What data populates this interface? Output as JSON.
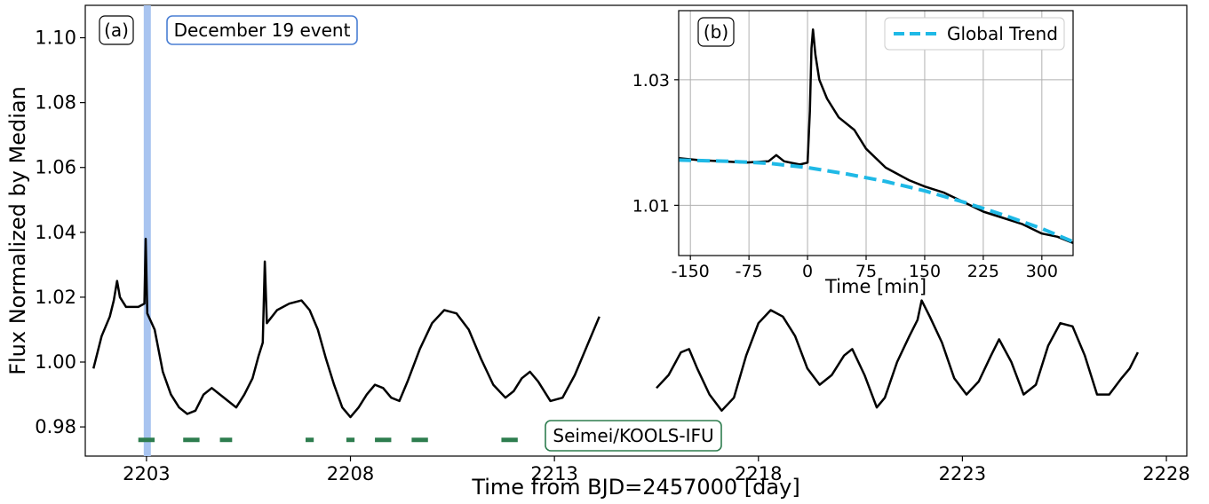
{
  "chart_data": [
    {
      "type": "line",
      "panel_label": "(a)",
      "xlabel": "Time from BJD=2457000 [day]",
      "ylabel": "Flux Normalized by Median",
      "xlim": [
        2201.5,
        2228.5
      ],
      "ylim": [
        0.971,
        1.11
      ],
      "x_ticks": [
        2203,
        2208,
        2213,
        2218,
        2223,
        2228
      ],
      "y_ticks": [
        0.98,
        1.0,
        1.02,
        1.04,
        1.06,
        1.08,
        1.1
      ],
      "y_tick_labels": [
        "0.98",
        "1.00",
        "1.02",
        "1.04",
        "1.06",
        "1.08",
        "1.10"
      ],
      "grid": false,
      "color": "#000000",
      "event": {
        "label": "December 19 event",
        "x": 2203.02,
        "color": "#a8c4f0"
      },
      "observations": {
        "label": "Seimei/KOOLS-IFU",
        "color": "#2e7d4f",
        "y": 0.976,
        "intervals": [
          [
            2202.8,
            2203.2
          ],
          [
            2203.9,
            2204.3
          ],
          [
            2204.8,
            2205.1
          ],
          [
            2206.9,
            2207.1
          ],
          [
            2207.9,
            2208.1
          ],
          [
            2208.6,
            2209.0
          ],
          [
            2209.5,
            2209.9
          ],
          [
            2211.7,
            2212.1
          ]
        ]
      },
      "segments": [
        {
          "name": "sector-part-1",
          "points": [
            [
              2201.7,
              0.998
            ],
            [
              2201.9,
              1.008
            ],
            [
              2202.1,
              1.014
            ],
            [
              2202.2,
              1.019
            ],
            [
              2202.28,
              1.025
            ],
            [
              2202.35,
              1.02
            ],
            [
              2202.5,
              1.017
            ],
            [
              2202.8,
              1.017
            ],
            [
              2202.95,
              1.018
            ],
            [
              2202.98,
              1.038
            ],
            [
              2203.02,
              1.015
            ],
            [
              2203.2,
              1.01
            ],
            [
              2203.4,
              0.997
            ],
            [
              2203.6,
              0.99
            ],
            [
              2203.8,
              0.986
            ],
            [
              2204.0,
              0.984
            ],
            [
              2204.2,
              0.985
            ],
            [
              2204.4,
              0.99
            ],
            [
              2204.6,
              0.992
            ],
            [
              2204.8,
              0.99
            ],
            [
              2205.0,
              0.988
            ],
            [
              2205.2,
              0.986
            ],
            [
              2205.4,
              0.99
            ],
            [
              2205.6,
              0.995
            ],
            [
              2205.75,
              1.002
            ],
            [
              2205.85,
              1.006
            ],
            [
              2205.9,
              1.031
            ],
            [
              2205.95,
              1.012
            ],
            [
              2206.2,
              1.016
            ],
            [
              2206.5,
              1.018
            ],
            [
              2206.8,
              1.019
            ],
            [
              2207.0,
              1.016
            ],
            [
              2207.2,
              1.01
            ],
            [
              2207.4,
              1.001
            ],
            [
              2207.6,
              0.993
            ],
            [
              2207.8,
              0.986
            ],
            [
              2208.0,
              0.983
            ],
            [
              2208.2,
              0.986
            ],
            [
              2208.4,
              0.99
            ],
            [
              2208.6,
              0.993
            ],
            [
              2208.8,
              0.992
            ],
            [
              2209.0,
              0.989
            ],
            [
              2209.2,
              0.988
            ],
            [
              2209.4,
              0.994
            ],
            [
              2209.7,
              1.004
            ],
            [
              2210.0,
              1.012
            ],
            [
              2210.3,
              1.016
            ],
            [
              2210.6,
              1.015
            ],
            [
              2210.9,
              1.01
            ],
            [
              2211.2,
              1.001
            ],
            [
              2211.5,
              0.993
            ],
            [
              2211.8,
              0.989
            ],
            [
              2212.0,
              0.991
            ],
            [
              2212.2,
              0.995
            ],
            [
              2212.4,
              0.997
            ],
            [
              2212.6,
              0.994
            ],
            [
              2212.9,
              0.988
            ],
            [
              2213.2,
              0.989
            ],
            [
              2213.5,
              0.996
            ],
            [
              2213.8,
              1.005
            ],
            [
              2214.1,
              1.014
            ]
          ]
        },
        {
          "name": "sector-part-2",
          "points": [
            [
              2215.5,
              0.992
            ],
            [
              2215.8,
              0.996
            ],
            [
              2216.1,
              1.003
            ],
            [
              2216.3,
              1.004
            ],
            [
              2216.5,
              0.998
            ],
            [
              2216.8,
              0.99
            ],
            [
              2217.1,
              0.985
            ],
            [
              2217.4,
              0.989
            ],
            [
              2217.7,
              1.002
            ],
            [
              2218.0,
              1.012
            ],
            [
              2218.3,
              1.016
            ],
            [
              2218.6,
              1.014
            ],
            [
              2218.9,
              1.008
            ],
            [
              2219.2,
              0.998
            ],
            [
              2219.5,
              0.993
            ],
            [
              2219.8,
              0.996
            ],
            [
              2220.1,
              1.002
            ],
            [
              2220.3,
              1.004
            ],
            [
              2220.6,
              0.996
            ],
            [
              2220.9,
              0.986
            ],
            [
              2221.1,
              0.989
            ],
            [
              2221.4,
              1.0
            ],
            [
              2221.7,
              1.008
            ],
            [
              2221.9,
              1.013
            ],
            [
              2222.0,
              1.019
            ],
            [
              2222.2,
              1.014
            ],
            [
              2222.5,
              1.006
            ],
            [
              2222.8,
              0.995
            ],
            [
              2223.1,
              0.99
            ],
            [
              2223.4,
              0.994
            ],
            [
              2223.7,
              1.002
            ],
            [
              2223.9,
              1.007
            ],
            [
              2224.2,
              1.0
            ],
            [
              2224.5,
              0.99
            ],
            [
              2224.8,
              0.993
            ],
            [
              2225.1,
              1.005
            ],
            [
              2225.4,
              1.012
            ],
            [
              2225.7,
              1.011
            ],
            [
              2226.0,
              1.002
            ],
            [
              2226.3,
              0.99
            ],
            [
              2226.6,
              0.99
            ],
            [
              2226.9,
              0.995
            ],
            [
              2227.1,
              0.998
            ],
            [
              2227.3,
              1.003
            ]
          ]
        }
      ]
    },
    {
      "type": "line",
      "panel_label": "(b)",
      "xlabel": "Time [min]",
      "xlim": [
        -165,
        340
      ],
      "ylim": [
        1.002,
        1.041
      ],
      "x_ticks": [
        -150,
        -75,
        0,
        75,
        150,
        225,
        300
      ],
      "y_ticks": [
        1.01,
        1.03
      ],
      "y_tick_labels": [
        "1.01",
        "1.03"
      ],
      "grid": true,
      "legend": "top-right",
      "series": [
        {
          "name": "",
          "color": "#000000",
          "points": [
            [
              -165,
              1.0175
            ],
            [
              -140,
              1.0172
            ],
            [
              -110,
              1.017
            ],
            [
              -80,
              1.0168
            ],
            [
              -50,
              1.017
            ],
            [
              -40,
              1.018
            ],
            [
              -30,
              1.017
            ],
            [
              -10,
              1.0165
            ],
            [
              0,
              1.0168
            ],
            [
              3,
              1.025
            ],
            [
              5,
              1.035
            ],
            [
              7,
              1.038
            ],
            [
              10,
              1.034
            ],
            [
              15,
              1.03
            ],
            [
              25,
              1.027
            ],
            [
              40,
              1.024
            ],
            [
              60,
              1.022
            ],
            [
              75,
              1.019
            ],
            [
              100,
              1.016
            ],
            [
              130,
              1.014
            ],
            [
              150,
              1.013
            ],
            [
              175,
              1.012
            ],
            [
              200,
              1.0105
            ],
            [
              225,
              1.009
            ],
            [
              250,
              1.008
            ],
            [
              275,
              1.007
            ],
            [
              300,
              1.0055
            ],
            [
              320,
              1.005
            ],
            [
              340,
              1.004
            ]
          ]
        },
        {
          "name": "Global Trend",
          "color": "#1fb9e6",
          "dashed": true,
          "points": [
            [
              -165,
              1.0172
            ],
            [
              -100,
              1.017
            ],
            [
              -50,
              1.0167
            ],
            [
              0,
              1.016
            ],
            [
              50,
              1.015
            ],
            [
              100,
              1.0138
            ],
            [
              150,
              1.0123
            ],
            [
              200,
              1.0105
            ],
            [
              250,
              1.0085
            ],
            [
              300,
              1.0063
            ],
            [
              340,
              1.0042
            ]
          ]
        }
      ]
    }
  ]
}
